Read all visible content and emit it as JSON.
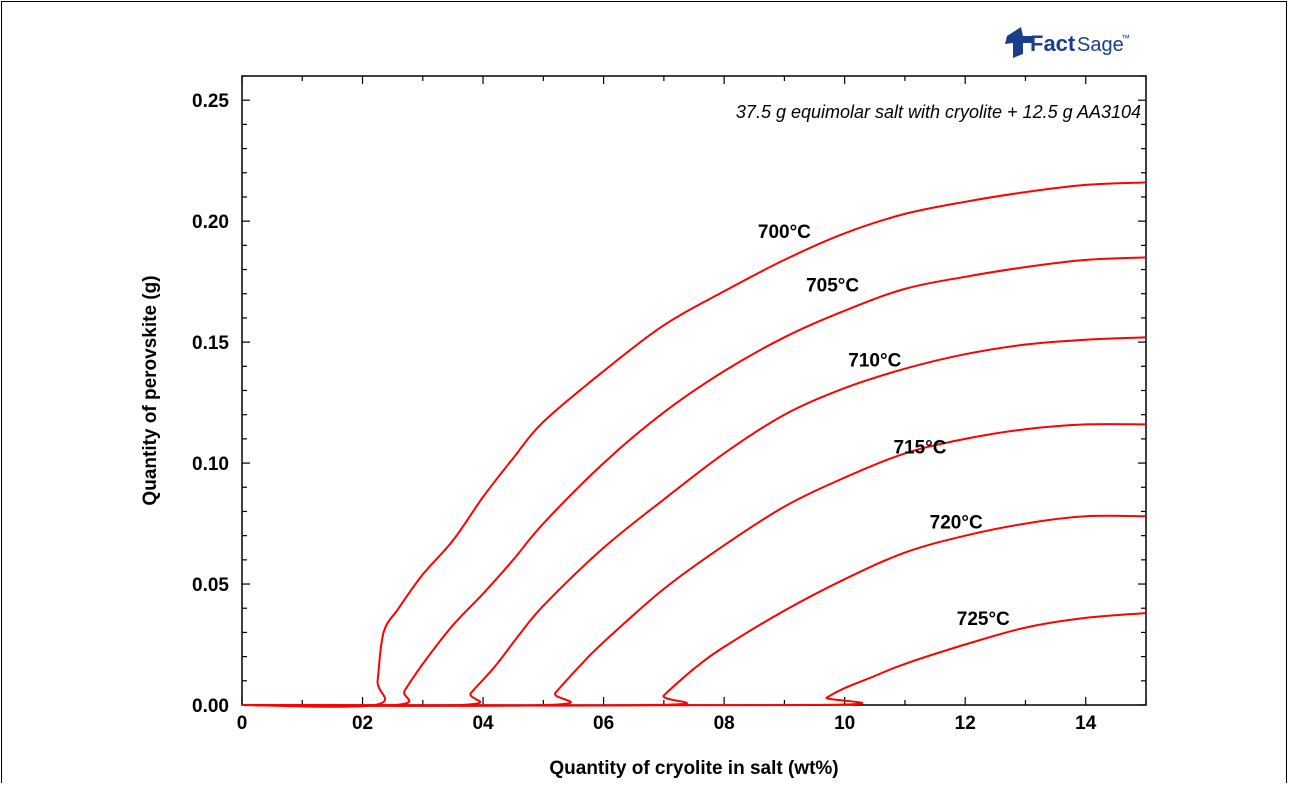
{
  "chart_data": {
    "type": "line",
    "title": "",
    "annotation": "37.5 g equimolar salt with cryolite + 12.5 g AA3104",
    "xlabel": "Quantity of cryolite in salt (wt%)",
    "ylabel": "Quantity of perovskite (g)",
    "xlim": [
      0,
      15
    ],
    "ylim": [
      0,
      0.26
    ],
    "x_ticks": [
      0,
      2,
      4,
      6,
      8,
      10,
      12,
      14
    ],
    "x_tick_labels": [
      "0",
      "02",
      "04",
      "06",
      "08",
      "10",
      "12",
      "14"
    ],
    "y_ticks": [
      0,
      0.05,
      0.1,
      0.15,
      0.2,
      0.25
    ],
    "y_tick_labels": [
      "0.00",
      "0.05",
      "0.10",
      "0.15",
      "0.20",
      "0.25"
    ],
    "grid": false,
    "line_color": "#ff0000",
    "series": [
      {
        "name": "700°C",
        "label_at": [
          9.0,
          0.193
        ],
        "points": [
          [
            0,
            0
          ],
          [
            2.2,
            0
          ],
          [
            2.25,
            0.01
          ],
          [
            2.35,
            0.03
          ],
          [
            2.6,
            0.04
          ],
          [
            3.0,
            0.054
          ],
          [
            3.5,
            0.068
          ],
          [
            4.0,
            0.086
          ],
          [
            4.5,
            0.102
          ],
          [
            5.0,
            0.117
          ],
          [
            6.0,
            0.138
          ],
          [
            7.0,
            0.157
          ],
          [
            8.0,
            0.171
          ],
          [
            9.0,
            0.184
          ],
          [
            10.0,
            0.195
          ],
          [
            11.0,
            0.203
          ],
          [
            12.0,
            0.208
          ],
          [
            13.0,
            0.212
          ],
          [
            14.0,
            0.215
          ],
          [
            15.0,
            0.216
          ]
        ]
      },
      {
        "name": "705°C",
        "label_at": [
          9.8,
          0.171
        ],
        "points": [
          [
            0,
            0
          ],
          [
            2.55,
            0
          ],
          [
            2.7,
            0.006
          ],
          [
            3.0,
            0.017
          ],
          [
            3.5,
            0.033
          ],
          [
            4.0,
            0.046
          ],
          [
            4.5,
            0.06
          ],
          [
            5.0,
            0.075
          ],
          [
            6.0,
            0.1
          ],
          [
            7.0,
            0.121
          ],
          [
            8.0,
            0.138
          ],
          [
            9.0,
            0.152
          ],
          [
            10.0,
            0.163
          ],
          [
            11.0,
            0.172
          ],
          [
            12.0,
            0.177
          ],
          [
            13.0,
            0.181
          ],
          [
            14.0,
            0.184
          ],
          [
            15.0,
            0.185
          ]
        ]
      },
      {
        "name": "710°C",
        "label_at": [
          10.5,
          0.14
        ],
        "points": [
          [
            0,
            0
          ],
          [
            3.65,
            0
          ],
          [
            3.8,
            0.005
          ],
          [
            4.2,
            0.016
          ],
          [
            4.6,
            0.029
          ],
          [
            5.0,
            0.041
          ],
          [
            6.0,
            0.065
          ],
          [
            7.0,
            0.085
          ],
          [
            8.0,
            0.104
          ],
          [
            9.0,
            0.12
          ],
          [
            10.0,
            0.131
          ],
          [
            11.0,
            0.139
          ],
          [
            12.0,
            0.145
          ],
          [
            13.0,
            0.149
          ],
          [
            14.0,
            0.151
          ],
          [
            15.0,
            0.152
          ]
        ]
      },
      {
        "name": "715°C",
        "label_at": [
          11.25,
          0.104
        ],
        "points": [
          [
            0,
            0
          ],
          [
            5.05,
            0
          ],
          [
            5.2,
            0.005
          ],
          [
            5.6,
            0.016
          ],
          [
            6.0,
            0.026
          ],
          [
            7.0,
            0.048
          ],
          [
            8.0,
            0.066
          ],
          [
            9.0,
            0.082
          ],
          [
            10.0,
            0.094
          ],
          [
            11.0,
            0.104
          ],
          [
            12.0,
            0.11
          ],
          [
            13.0,
            0.114
          ],
          [
            14.0,
            0.116
          ],
          [
            15.0,
            0.116
          ]
        ]
      },
      {
        "name": "720°C",
        "label_at": [
          11.85,
          0.073
        ],
        "points": [
          [
            0,
            0
          ],
          [
            6.85,
            0
          ],
          [
            7.0,
            0.004
          ],
          [
            7.5,
            0.015
          ],
          [
            8.0,
            0.024
          ],
          [
            9.0,
            0.039
          ],
          [
            10.0,
            0.052
          ],
          [
            11.0,
            0.063
          ],
          [
            12.0,
            0.07
          ],
          [
            13.0,
            0.075
          ],
          [
            14.0,
            0.078
          ],
          [
            15.0,
            0.078
          ]
        ]
      },
      {
        "name": "725°C",
        "label_at": [
          12.3,
          0.033
        ],
        "points": [
          [
            0,
            0
          ],
          [
            9.55,
            0
          ],
          [
            9.7,
            0.003
          ],
          [
            10.0,
            0.007
          ],
          [
            10.5,
            0.012
          ],
          [
            11.0,
            0.017
          ],
          [
            12.0,
            0.025
          ],
          [
            13.0,
            0.032
          ],
          [
            14.0,
            0.036
          ],
          [
            15.0,
            0.038
          ]
        ]
      }
    ]
  },
  "logo": {
    "text_bold": "Fact",
    "text_normal": "Sage",
    "trademark": "™",
    "brand_color": "#1a3f8a"
  }
}
